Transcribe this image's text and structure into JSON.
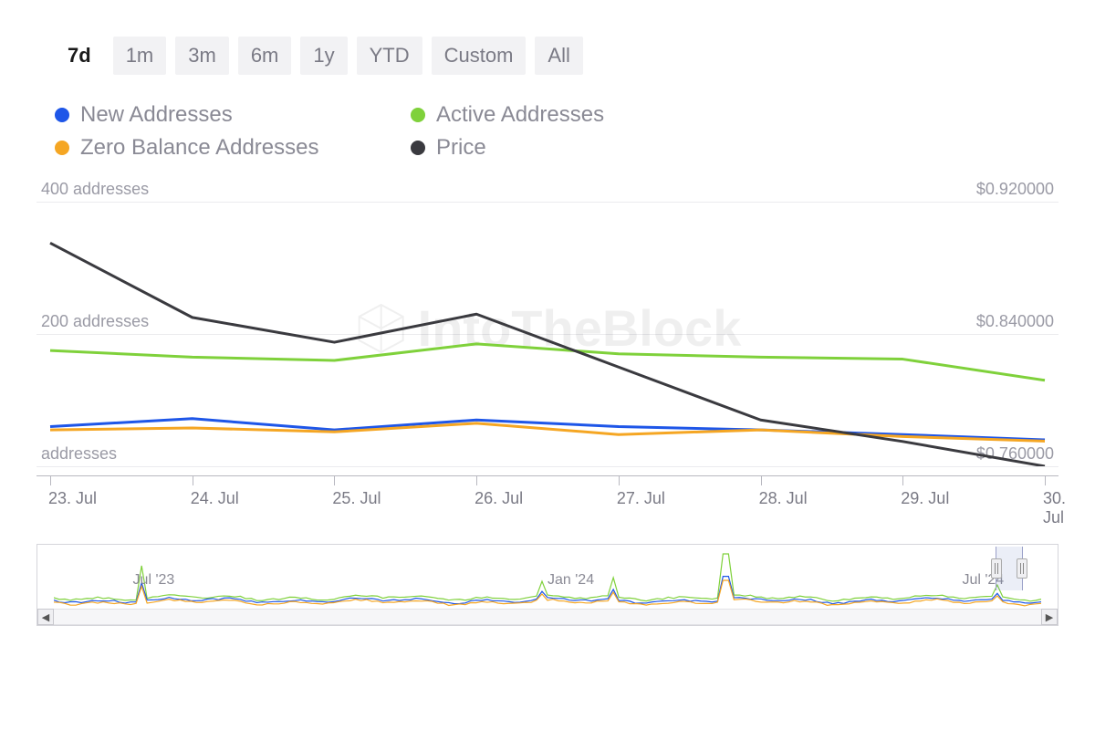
{
  "time_tabs": {
    "items": [
      "7d",
      "1m",
      "3m",
      "6m",
      "1y",
      "YTD",
      "Custom",
      "All"
    ],
    "active_index": 0
  },
  "legend": [
    {
      "label": "New Addresses",
      "color": "#1e56e8"
    },
    {
      "label": "Active Addresses",
      "color": "#7fd13b"
    },
    {
      "label": "Zero Balance Addresses",
      "color": "#f5a623"
    },
    {
      "label": "Price",
      "color": "#3a3a3f"
    }
  ],
  "watermark_text": "IntoTheBlock",
  "main_chart": {
    "type": "line",
    "x_categories": [
      "23. Jul",
      "24. Jul",
      "25. Jul",
      "26. Jul",
      "27. Jul",
      "28. Jul",
      "29. Jul",
      "30. Jul"
    ],
    "left_axis": {
      "ticks": [
        {
          "v": 0,
          "label": "addresses"
        },
        {
          "v": 200,
          "label": "200 addresses"
        },
        {
          "v": 400,
          "label": "400 addresses"
        }
      ],
      "min": 0,
      "max": 400
    },
    "right_axis": {
      "ticks": [
        {
          "v": 0.76,
          "label": "$0.760000"
        },
        {
          "v": 0.84,
          "label": "$0.840000"
        },
        {
          "v": 0.92,
          "label": "$0.920000"
        }
      ],
      "min": 0.76,
      "max": 0.92
    },
    "series": {
      "new_addresses": {
        "axis": "left",
        "color": "#1e56e8",
        "width": 3,
        "values": [
          60,
          72,
          55,
          70,
          60,
          55,
          48,
          40
        ]
      },
      "active_addresses": {
        "axis": "left",
        "color": "#7fd13b",
        "width": 3,
        "values": [
          175,
          165,
          160,
          185,
          170,
          165,
          162,
          130
        ]
      },
      "zero_balance_addresses": {
        "axis": "left",
        "color": "#f5a623",
        "width": 3,
        "values": [
          55,
          58,
          52,
          65,
          48,
          55,
          45,
          38
        ]
      },
      "price": {
        "axis": "right",
        "color": "#3a3a3f",
        "width": 3,
        "values": [
          0.895,
          0.85,
          0.835,
          0.852,
          0.82,
          0.788,
          0.775,
          0.76
        ]
      }
    },
    "background_color": "#ffffff",
    "grid_color": "#ebebee",
    "axis_text_color": "#9a9aa5",
    "label_fontsize": 18
  },
  "navigator": {
    "labels": [
      "Jul '23",
      "Jan '24",
      "Jul '24"
    ],
    "label_positions_pct": [
      8,
      50,
      92
    ],
    "selection_right_pct": 98,
    "selection_width_pct": 2.5
  }
}
